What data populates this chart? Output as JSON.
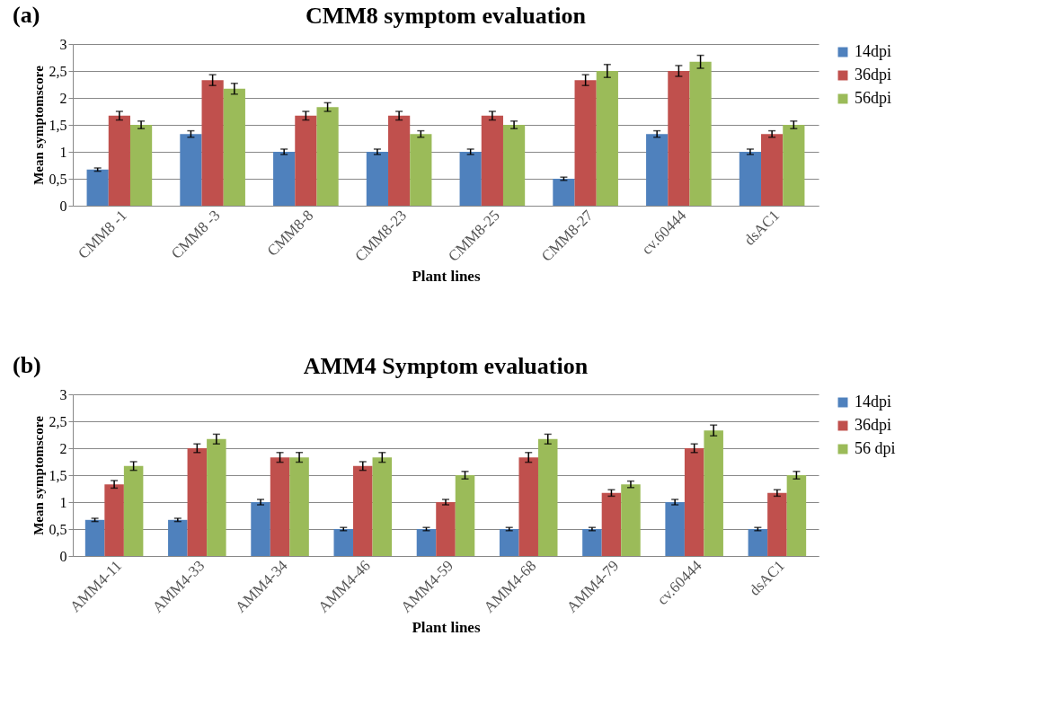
{
  "chart_data": [
    {
      "type": "bar",
      "title": "CMM8 symptom  evaluation",
      "xlabel": "Plant lines",
      "ylabel": "Mean symptomscore",
      "annotations": [
        "(a)"
      ],
      "categories": [
        "CMM8 -1",
        "CMM8 -3",
        "CMM8-8",
        "CMM8-23",
        "CMM8-25",
        "CMM8-27",
        "cv.60444",
        "dsAC1"
      ],
      "series": [
        {
          "name": "14dpi",
          "color": "#4f81bd",
          "values": [
            0.67,
            1.33,
            1,
            1,
            1,
            0.5,
            1.33,
            1
          ],
          "errors": [
            0.03,
            0.06,
            0.05,
            0.05,
            0.05,
            0.03,
            0.06,
            0.05
          ]
        },
        {
          "name": "36dpi",
          "color": "#c0504d",
          "values": [
            1.67,
            2.33,
            1.67,
            1.67,
            1.67,
            2.33,
            2.5,
            1.33
          ],
          "errors": [
            0.08,
            0.1,
            0.08,
            0.08,
            0.08,
            0.1,
            0.1,
            0.06
          ]
        },
        {
          "name": "56dpi",
          "color": "#9bbb59",
          "values": [
            1.5,
            2.17,
            1.83,
            1.33,
            1.5,
            2.5,
            2.67,
            1.5
          ],
          "errors": [
            0.07,
            0.1,
            0.08,
            0.06,
            0.07,
            0.12,
            0.12,
            0.07
          ]
        }
      ],
      "ylim": [
        0,
        3
      ],
      "yticks": [
        0,
        {
          "value": 0.5,
          "label": "0,5"
        },
        1,
        {
          "value": 1.5,
          "label": "1,5"
        },
        2,
        {
          "value": 2.5,
          "label": "2,5"
        },
        3
      ],
      "grid": "y",
      "legend": "right"
    },
    {
      "type": "bar",
      "title": "AMM4 Symptom  evaluation",
      "xlabel": "Plant lines",
      "ylabel": "Mean symptomscore",
      "annotations": [
        "(b)"
      ],
      "categories": [
        "AMM4-11",
        "AMM4-33",
        "AMM4-34",
        "AMM4-46",
        "AMM4-59",
        "AMM4-68",
        "AMM4-79",
        "cv.60444",
        "dsAC1"
      ],
      "series": [
        {
          "name": "14dpi",
          "color": "#4f81bd",
          "values": [
            0.67,
            0.67,
            1,
            0.5,
            0.5,
            0.5,
            0.5,
            1,
            0.5
          ],
          "errors": [
            0.03,
            0.03,
            0.05,
            0.03,
            0.03,
            0.03,
            0.03,
            0.05,
            0.03
          ]
        },
        {
          "name": "36dpi",
          "color": "#c0504d",
          "values": [
            1.33,
            2,
            1.83,
            1.67,
            1,
            1.83,
            1.17,
            2,
            1.17
          ],
          "errors": [
            0.07,
            0.08,
            0.09,
            0.08,
            0.05,
            0.09,
            0.06,
            0.08,
            0.06
          ]
        },
        {
          "name": "56 dpi",
          "color": "#9bbb59",
          "values": [
            1.67,
            2.17,
            1.83,
            1.83,
            1.5,
            2.17,
            1.33,
            2.33,
            1.5
          ],
          "errors": [
            0.08,
            0.09,
            0.09,
            0.09,
            0.07,
            0.09,
            0.06,
            0.1,
            0.07
          ]
        }
      ],
      "ylim": [
        0,
        3
      ],
      "yticks": [
        0,
        {
          "value": 0.5,
          "label": "0,5"
        },
        1,
        {
          "value": 1.5,
          "label": "1,5"
        },
        2,
        {
          "value": 2.5,
          "label": "2,5"
        },
        3
      ],
      "grid": "y",
      "legend": "right"
    }
  ]
}
